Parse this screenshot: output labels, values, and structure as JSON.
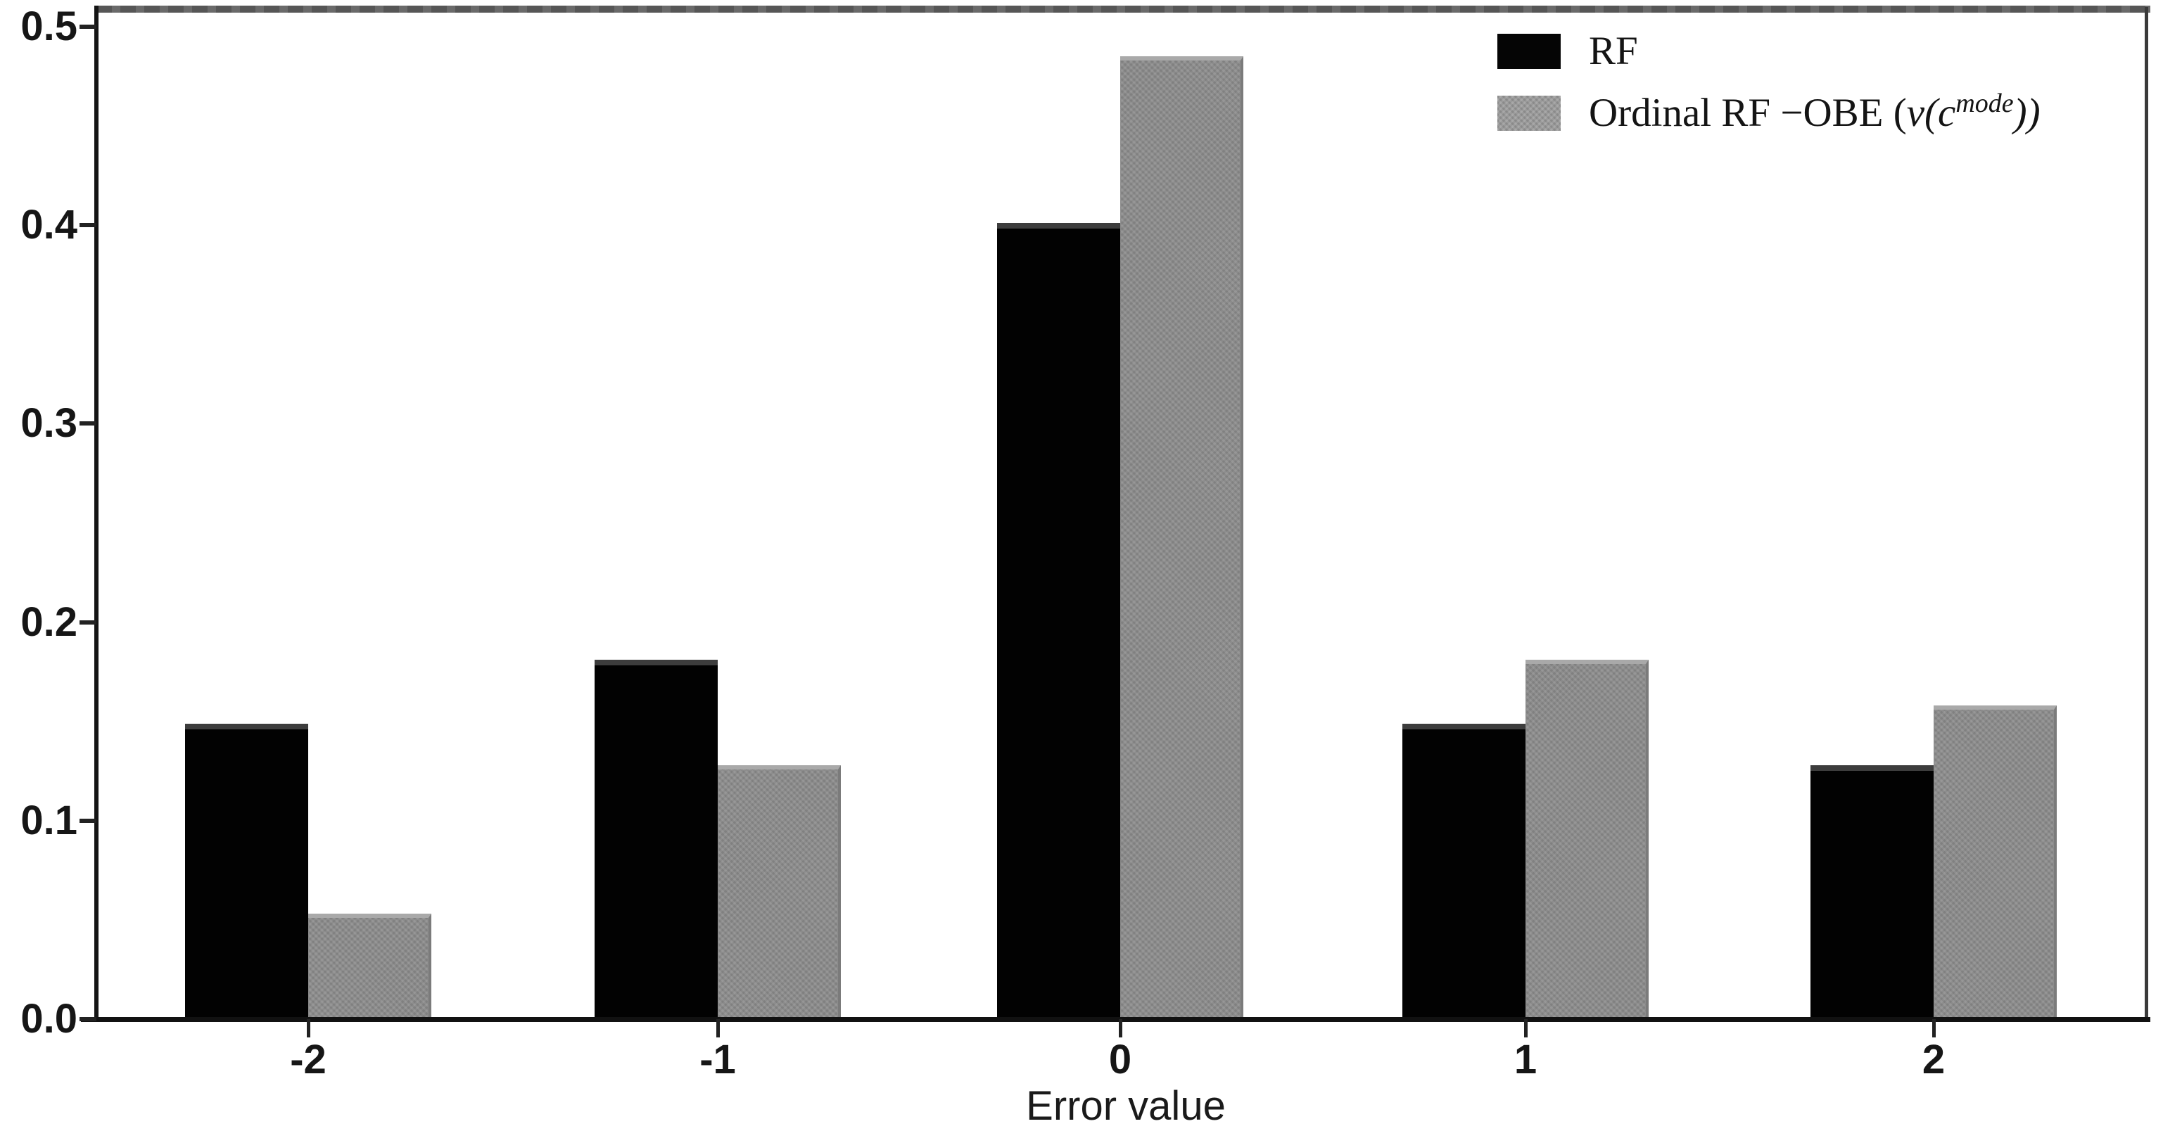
{
  "chart_data": {
    "type": "bar",
    "title": "",
    "xlabel": "Error value",
    "ylabel": "",
    "categories": [
      "-2",
      "-1",
      "0",
      "1",
      "2"
    ],
    "series": [
      {
        "name": "RF",
        "color": "#000000",
        "values": [
          0.149,
          0.181,
          0.401,
          0.149,
          0.128
        ]
      },
      {
        "name": "Ordinal RF −OBE (v(c^mode))",
        "color": "#8b8b8b",
        "values": [
          0.053,
          0.128,
          0.485,
          0.181,
          0.158
        ]
      }
    ],
    "ylim": [
      0,
      0.509
    ],
    "yticks": [
      "0.0",
      "0.1",
      "0.2",
      "0.3",
      "0.4",
      "0.5"
    ],
    "xticks": [
      "-2",
      "-1",
      "0",
      "1",
      "2"
    ],
    "grid": false,
    "legend_position": "upper right"
  },
  "axes": {
    "x_label": "Error value"
  },
  "legend": {
    "rf_label": "RF",
    "ordinal_prefix": "Ordinal RF −OBE (",
    "ordinal_math_main": "v(c",
    "ordinal_math_sup": "mode",
    "ordinal_suffix": "))"
  },
  "colors": {
    "rf_bar": "#000000",
    "ordinal_bar": "#8b8b8b",
    "axis": "#1c1c1c",
    "top_spine": "#5e5e5e"
  }
}
